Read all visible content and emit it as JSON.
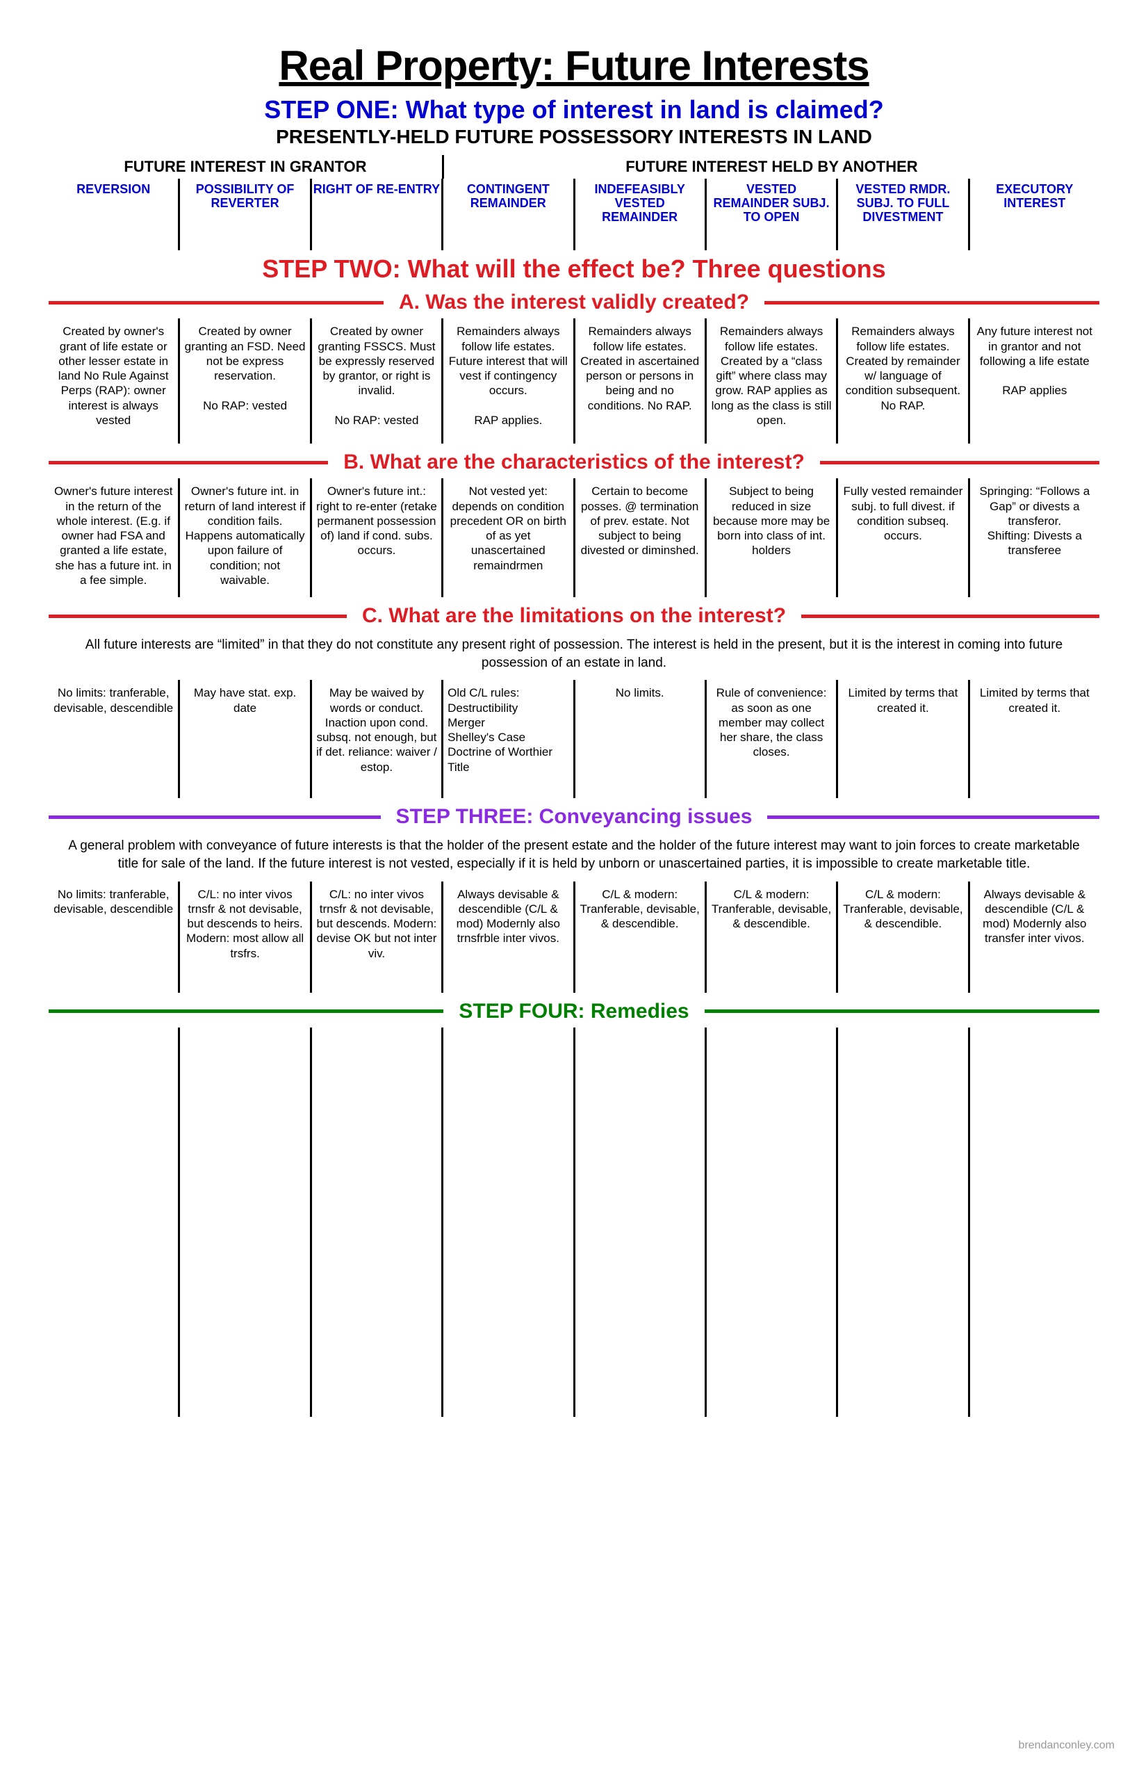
{
  "title": "Real Property: Future Interests",
  "step1": {
    "heading": "STEP ONE: What type of interest in land is claimed?",
    "sub": "PRESENTLY-HELD FUTURE POSSESSORY INTERESTS IN LAND",
    "group_left": "FUTURE INTEREST IN GRANTOR",
    "group_right": "FUTURE INTEREST HELD BY ANOTHER"
  },
  "columns": [
    {
      "head": "REVERSION"
    },
    {
      "head": "POSSIBILITY OF REVERTER"
    },
    {
      "head": "RIGHT OF RE-ENTRY"
    },
    {
      "head": "CONTINGENT REMAINDER"
    },
    {
      "head": "INDEFEASIBLY VESTED REMAINDER"
    },
    {
      "head": "VESTED REMAINDER SUBJ. TO OPEN"
    },
    {
      "head": "VESTED RMDR. SUBJ. TO FULL DIVESTMENT"
    },
    {
      "head": "EXECUTORY INTEREST"
    }
  ],
  "step2": {
    "heading": "STEP TWO: What will the effect be? Three questions",
    "a_label": "A. Was the interest validly created?",
    "b_label": "B. What are the characteristics of the interest?",
    "c_label": "C. What are the limitations on the interest?",
    "c_intro": "All future interests are “limited” in that they do not constitute any present right of possession. The interest is held in the present, but it is the interest in coming into future possession of an estate in land."
  },
  "rowA": [
    "Created by owner's grant of life estate or other lesser estate in land No Rule Against Perps (RAP): owner interest is always vested",
    "Created by owner granting an FSD.  Need not be express reservation.\n\nNo RAP: vested",
    "Created by owner granting FSSCS.  Must be expressly reserved by grantor, or right is invalid.\n\nNo RAP: vested",
    "Remainders always follow life estates. Future interest that will vest if contingency occurs.\n\nRAP applies.",
    "Remainders always follow life estates. Created in ascertained person or persons in being and no conditions. No RAP.",
    "Remainders always follow life estates. Created by a “class gift” where class may grow. RAP applies as long as the class is still open.",
    "Remainders always follow life estates. Created by remainder w/ language of condition subsequent. No RAP.",
    "Any future interest not in grantor and not following a life estate\n\nRAP applies"
  ],
  "rowB": [
    "Owner's future interest in the return of the whole interest. (E.g. if owner had FSA and granted a life estate, she has a future int. in a fee simple.",
    "Owner's future int. in return of land interest if condition fails. Happens automatically upon failure of condition; not waivable.",
    "Owner's future int.: right to re-enter (retake permanent possession of) land if cond. subs. occurs.",
    "Not vested yet: depends on condition precedent OR on birth of as yet unascertained remaindrmen",
    "Certain to become posses. @ termination of prev. estate. Not subject to being divested or diminshed.",
    "Subject to being reduced in size because more may be born into class of int. holders",
    "Fully vested remainder subj. to full divest. if condition subseq. occurs.",
    "Springing: “Follows a Gap” or divests a transferor.\nShifting: Divests a transferee"
  ],
  "rowC": [
    "No limits: tranferable, devisable, descendible",
    "May have stat. exp. date",
    "May be waived by words or conduct. Inaction upon cond. subsq. not enough, but if det. reliance: waiver / estop.",
    "Old C/L rules:\nDestructibility\nMerger\nShelley's Case\nDoctrine of Worthier Title",
    "No limits.",
    "Rule of convenience: as soon as one member may collect her share, the class closes.",
    "Limited by terms that created it.",
    "Limited by terms that created it."
  ],
  "step3": {
    "heading": "STEP THREE: Conveyancing issues",
    "intro": "A general problem with conveyance of future interests is that the holder of the present estate and the holder of the future interest may want to join forces to create marketable title for sale of the land.  If the future interest is not vested, especially if it is held by unborn or unascertained parties, it is impossible to create marketable title."
  },
  "rowD": [
    "No limits: tranferable, devisable, descendible",
    "C/L: no inter vivos trnsfr & not devisable, but descends to heirs. Modern: most allow all trsfrs.",
    "C/L: no inter vivos trnsfr & not devisable, but descends. Modern: devise OK but not inter viv.",
    "Always devisable & descendible (C/L & mod) Modernly also trnsfrble inter vivos.",
    "C/L & modern: Tranferable, devisable, & descendible.",
    "C/L & modern: Tranferable, devisable, & descendible.",
    "C/L & modern: Tranferable, devisable, & descendible.",
    "Always devisable & descendible (C/L & mod) Modernly also transfer inter vivos."
  ],
  "step4": {
    "heading": "STEP FOUR: Remedies"
  },
  "footer": "brendanconley.com"
}
